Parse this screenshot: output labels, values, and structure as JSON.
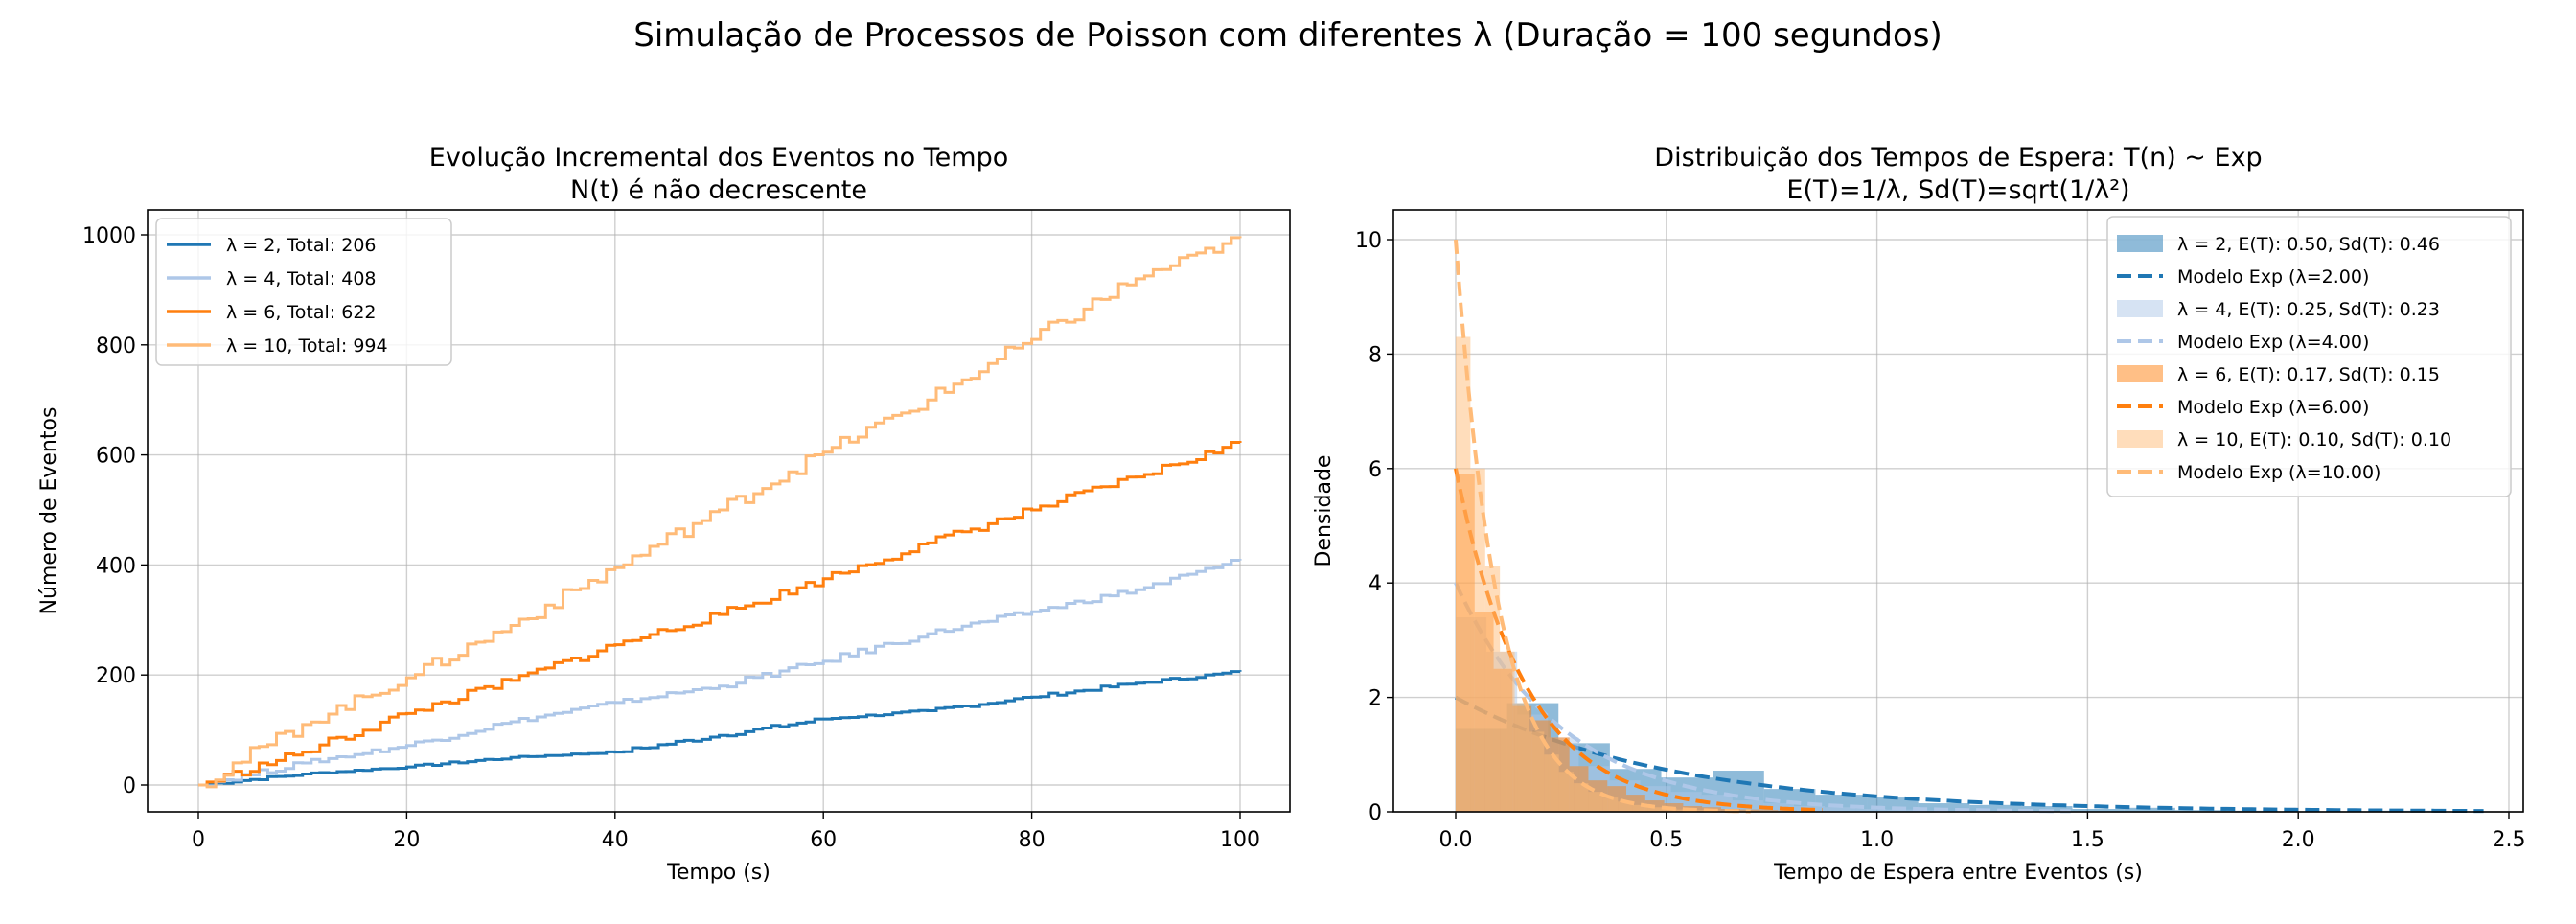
{
  "suptitle": "Simulação de Processos de Poisson com diferentes λ (Duração = 100 segundos)",
  "chart_data": [
    {
      "type": "line",
      "title": "Evolução Incremental dos Eventos no Tempo",
      "subtitle": "N(t) é não decrescente",
      "xlabel": "Tempo (s)",
      "ylabel": "Número de Eventos",
      "xlim": [
        -5,
        105
      ],
      "ylim": [
        -50,
        1040
      ],
      "xticks": [
        0,
        20,
        40,
        60,
        80,
        100
      ],
      "yticks": [
        0,
        200,
        400,
        600,
        800,
        1000
      ],
      "grid": true,
      "legend_position": "top-left",
      "x": [
        0,
        10,
        20,
        30,
        40,
        50,
        60,
        70,
        80,
        90,
        100
      ],
      "series": [
        {
          "name": "λ = 2, Total: 206",
          "color": "#1f77b4",
          "values": [
            0,
            20,
            33,
            50,
            60,
            90,
            120,
            135,
            160,
            185,
            206
          ]
        },
        {
          "name": "λ = 4, Total: 408",
          "color": "#aec7e8",
          "values": [
            0,
            40,
            72,
            115,
            150,
            180,
            225,
            275,
            315,
            355,
            408
          ]
        },
        {
          "name": "λ = 6, Total: 622",
          "color": "#ff7f0e",
          "values": [
            0,
            60,
            130,
            190,
            255,
            310,
            375,
            440,
            500,
            560,
            622
          ]
        },
        {
          "name": "λ = 10, Total: 994",
          "color": "#ffbb78",
          "values": [
            0,
            110,
            195,
            290,
            395,
            500,
            605,
            700,
            810,
            920,
            994
          ]
        }
      ]
    },
    {
      "type": "bar",
      "title": "Distribuição dos Tempos de Espera: T(n) ~ Exp",
      "subtitle": "E(T)=1/λ, Sd(T)=sqrt(1/λ²)",
      "xlabel": "Tempo de Espera entre Eventos (s)",
      "ylabel": "Densidade",
      "xlim": [
        -0.12,
        2.58
      ],
      "ylim": [
        0,
        10.5
      ],
      "xticks": [
        "0.0",
        "0.5",
        "1.0",
        "1.5",
        "2.0",
        "2.5"
      ],
      "yticks": [
        0,
        2,
        4,
        6,
        8,
        10
      ],
      "grid": true,
      "legend_position": "top-right",
      "series": [
        {
          "name": "λ = 2, E(T): 0.50, Sd(T): 0.46",
          "model_name": "Modelo Exp (λ=2.00)",
          "lambda": 2,
          "color": "#1f77b4",
          "bin_width": 0.122,
          "model_xmax": 2.44,
          "values": [
            1.45,
            1.9,
            1.2,
            0.75,
            0.6,
            0.72,
            0.4,
            0.3,
            0.25,
            0.15,
            0.12,
            0.1,
            0.05,
            0.07,
            0.03,
            0.02,
            0.01,
            0.01,
            0.02,
            0.01
          ]
        },
        {
          "name": "λ = 4, E(T): 0.25, Sd(T): 0.23",
          "model_name": "Modelo Exp (λ=4.00)",
          "lambda": 4,
          "color": "#aec7e8",
          "bin_width": 0.073,
          "model_xmax": 1.46,
          "values": [
            3.4,
            2.8,
            1.7,
            1.3,
            0.8,
            0.55,
            0.45,
            0.35,
            0.3,
            0.2,
            0.15,
            0.1,
            0.08,
            0.05,
            0.04,
            0.03,
            0.02,
            0.02,
            0.01,
            0.01
          ]
        },
        {
          "name": "λ = 6, E(T): 0.17, Sd(T): 0.15",
          "model_name": "Modelo Exp (λ=6.00)",
          "lambda": 6,
          "color": "#ff7f0e",
          "bin_width": 0.045,
          "model_xmax": 0.87,
          "values": [
            5.9,
            3.5,
            2.5,
            1.85,
            1.6,
            1.3,
            0.8,
            0.55,
            0.45,
            0.3,
            0.2,
            0.15,
            0.1,
            0.08,
            0.05,
            0.04,
            0.03,
            0.02,
            0.01,
            0.01
          ]
        },
        {
          "name": "λ = 10, E(T): 0.10, Sd(T): 0.10",
          "model_name": "Modelo Exp (λ=10.00)",
          "lambda": 10,
          "color": "#ffbb78",
          "bin_width": 0.035,
          "model_xmax": 0.7,
          "values": [
            8.3,
            6.0,
            4.3,
            2.8,
            1.9,
            1.4,
            1.0,
            0.7,
            0.5,
            0.35,
            0.25,
            0.18,
            0.12,
            0.08,
            0.06,
            0.04,
            0.03,
            0.02,
            0.01,
            0.01
          ]
        }
      ]
    }
  ]
}
